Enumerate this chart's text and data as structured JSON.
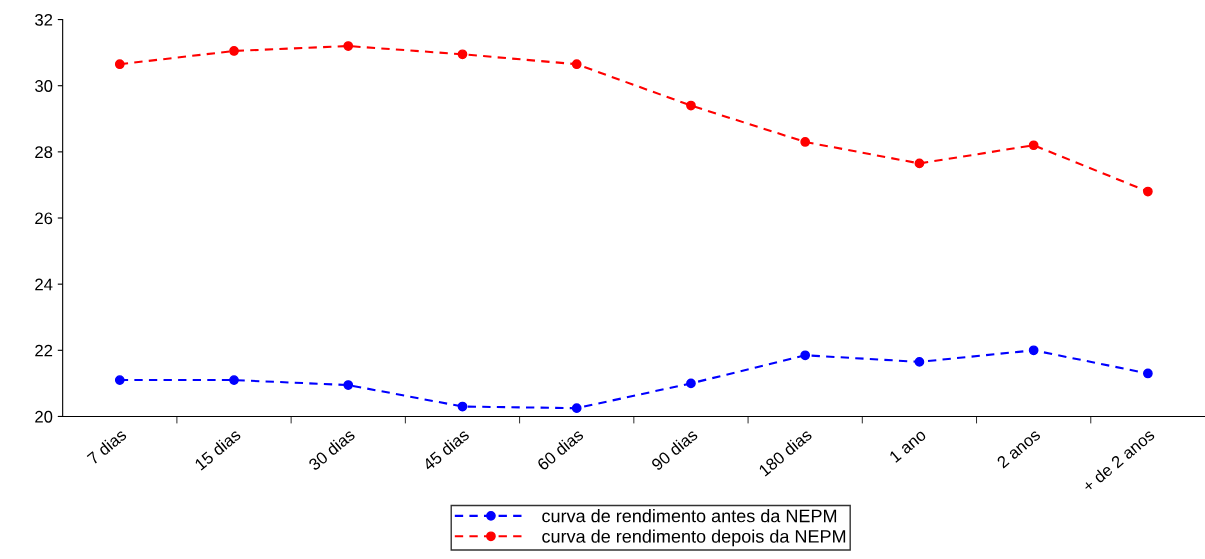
{
  "chart_data": {
    "type": "line",
    "categories": [
      "7 dias",
      "15 dias",
      "30 dias",
      "45 dias",
      "60 dias",
      "90 dias",
      "180 dias",
      "1 ano",
      "2 anos",
      "+ de 2 anos"
    ],
    "series": [
      {
        "name": "curva de rendimento antes da NEPM",
        "color": "#0000ff",
        "marker": "circle",
        "values": [
          21.1,
          21.1,
          20.95,
          20.3,
          20.25,
          21.0,
          21.85,
          21.65,
          22.0,
          21.3
        ]
      },
      {
        "name": "curva de rendimento depois da NEPM",
        "color": "#ff0000",
        "marker": "circle",
        "values": [
          30.65,
          31.05,
          31.2,
          30.95,
          30.65,
          29.4,
          28.3,
          27.65,
          28.2,
          26.8
        ]
      }
    ],
    "line_style": "dashed",
    "ylim": [
      20,
      32
    ],
    "yticks": [
      20,
      22,
      24,
      26,
      28,
      30,
      32
    ],
    "grid": false,
    "legend": "bottom"
  }
}
